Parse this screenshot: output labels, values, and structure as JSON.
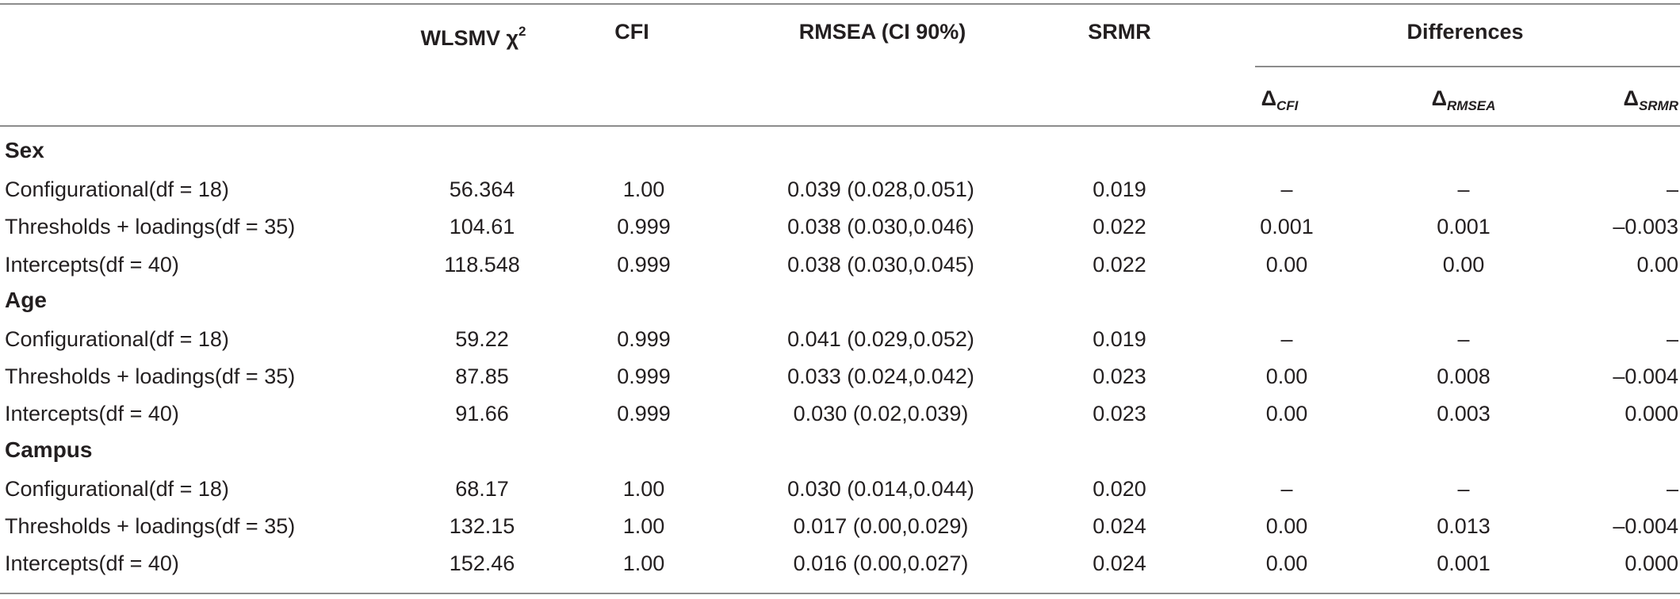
{
  "header": {
    "col_chi": "WLSMV χ",
    "col_chi_sup": "2",
    "col_cfi": "CFI",
    "col_rmsea": "RMSEA (CI 90%)",
    "col_srmr": "SRMR",
    "col_differences": "Differences",
    "delta_symbol": "Δ",
    "delta_cfi_sub": "CFI",
    "delta_rmsea_sub": "RMSEA",
    "delta_srmr_sub": "SRMR"
  },
  "groups": [
    {
      "name": "Sex",
      "rows": [
        {
          "model": "Configurational(df = 18)",
          "chi": "56.364",
          "cfi": "1.00",
          "rmsea": "0.039 (0.028,0.051)",
          "srmr": "0.019",
          "d_cfi": "–",
          "d_rmsea": "–",
          "d_srmr": "–"
        },
        {
          "model": "Thresholds + loadings(df = 35)",
          "chi": "104.61",
          "cfi": "0.999",
          "rmsea": "0.038 (0.030,0.046)",
          "srmr": "0.022",
          "d_cfi": "0.001",
          "d_rmsea": "0.001",
          "d_srmr": "–0.003"
        },
        {
          "model": "Intercepts(df = 40)",
          "chi": "118.548",
          "cfi": "0.999",
          "rmsea": "0.038 (0.030,0.045)",
          "srmr": "0.022",
          "d_cfi": "0.00",
          "d_rmsea": "0.00",
          "d_srmr": "0.00"
        }
      ]
    },
    {
      "name": "Age",
      "rows": [
        {
          "model": "Configurational(df = 18)",
          "chi": "59.22",
          "cfi": "0.999",
          "rmsea": "0.041 (0.029,0.052)",
          "srmr": "0.019",
          "d_cfi": "–",
          "d_rmsea": "–",
          "d_srmr": "–"
        },
        {
          "model": "Thresholds + loadings(df = 35)",
          "chi": "87.85",
          "cfi": "0.999",
          "rmsea": "0.033 (0.024,0.042)",
          "srmr": "0.023",
          "d_cfi": "0.00",
          "d_rmsea": "0.008",
          "d_srmr": "–0.004"
        },
        {
          "model": "Intercepts(df = 40)",
          "chi": "91.66",
          "cfi": "0.999",
          "rmsea": "0.030 (0.02,0.039)",
          "srmr": "0.023",
          "d_cfi": "0.00",
          "d_rmsea": "0.003",
          "d_srmr": "0.000"
        }
      ]
    },
    {
      "name": "Campus",
      "rows": [
        {
          "model": "Configurational(df = 18)",
          "chi": "68.17",
          "cfi": "1.00",
          "rmsea": "0.030 (0.014,0.044)",
          "srmr": "0.020",
          "d_cfi": "–",
          "d_rmsea": "–",
          "d_srmr": "–"
        },
        {
          "model": "Thresholds + loadings(df = 35)",
          "chi": "132.15",
          "cfi": "1.00",
          "rmsea": "0.017 (0.00,0.029)",
          "srmr": "0.024",
          "d_cfi": "0.00",
          "d_rmsea": "0.013",
          "d_srmr": "–0.004"
        },
        {
          "model": "Intercepts(df = 40)",
          "chi": "152.46",
          "cfi": "1.00",
          "rmsea": "0.016 (0.00,0.027)",
          "srmr": "0.024",
          "d_cfi": "0.00",
          "d_rmsea": "0.001",
          "d_srmr": "0.000"
        }
      ]
    }
  ]
}
